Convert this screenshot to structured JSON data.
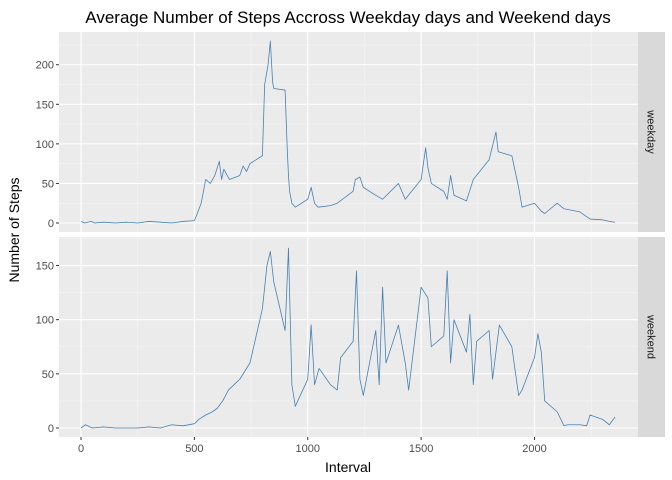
{
  "chart_data": {
    "type": "line",
    "title": "Average Number of Steps Accross Weekday days and Weekend days",
    "xlabel": "Interval",
    "ylabel": "Number of Steps",
    "line_color": "#4682b4",
    "x_ticks": [
      "0",
      "500",
      "1000",
      "1500",
      "2000"
    ],
    "xlim": [
      0,
      2355
    ],
    "facets": [
      {
        "label": "weekday",
        "ylim": [
          0,
          230
        ],
        "y_ticks": [
          "0",
          "50",
          "100",
          "150",
          "200"
        ],
        "x": [
          0,
          15,
          30,
          45,
          60,
          100,
          150,
          200,
          250,
          300,
          350,
          400,
          450,
          500,
          510,
          530,
          550,
          570,
          590,
          610,
          620,
          630,
          645,
          655,
          700,
          715,
          730,
          745,
          800,
          810,
          825,
          835,
          845,
          850,
          900,
          910,
          915,
          920,
          930,
          945,
          1000,
          1015,
          1030,
          1045,
          1100,
          1130,
          1200,
          1210,
          1230,
          1245,
          1300,
          1330,
          1400,
          1430,
          1500,
          1520,
          1530,
          1545,
          1600,
          1615,
          1630,
          1645,
          1700,
          1730,
          1800,
          1830,
          1840,
          1900,
          1930,
          1945,
          2000,
          2030,
          2045,
          2100,
          2130,
          2200,
          2230,
          2245,
          2300,
          2330,
          2355
        ],
        "y": [
          2,
          0,
          1,
          2,
          0,
          1,
          0,
          1,
          0,
          2,
          1,
          0,
          2,
          3,
          10,
          25,
          55,
          50,
          60,
          78,
          55,
          68,
          60,
          55,
          60,
          72,
          65,
          75,
          85,
          175,
          200,
          230,
          178,
          170,
          168,
          90,
          60,
          40,
          25,
          20,
          30,
          45,
          25,
          20,
          22,
          25,
          40,
          55,
          58,
          45,
          35,
          30,
          50,
          30,
          55,
          95,
          70,
          50,
          40,
          30,
          60,
          35,
          28,
          55,
          80,
          115,
          90,
          85,
          45,
          20,
          25,
          15,
          12,
          25,
          18,
          14,
          8,
          5,
          4,
          2,
          1
        ]
      },
      {
        "label": "weekend",
        "ylim": [
          0,
          168
        ],
        "y_ticks": [
          "0",
          "50",
          "100",
          "150"
        ],
        "x": [
          0,
          20,
          50,
          100,
          150,
          200,
          250,
          300,
          350,
          400,
          450,
          500,
          520,
          550,
          580,
          600,
          625,
          650,
          700,
          745,
          800,
          820,
          835,
          850,
          900,
          915,
          930,
          945,
          1000,
          1015,
          1030,
          1050,
          1100,
          1130,
          1145,
          1200,
          1215,
          1230,
          1245,
          1300,
          1315,
          1330,
          1345,
          1400,
          1430,
          1445,
          1500,
          1530,
          1545,
          1600,
          1615,
          1630,
          1645,
          1700,
          1715,
          1730,
          1745,
          1800,
          1815,
          1830,
          1845,
          1900,
          1930,
          1945,
          2000,
          2015,
          2030,
          2045,
          2100,
          2130,
          2145,
          2200,
          2230,
          2245,
          2300,
          2330,
          2355
        ],
        "y": [
          0,
          3,
          0,
          1,
          0,
          0,
          0,
          1,
          0,
          3,
          2,
          4,
          8,
          12,
          15,
          18,
          25,
          35,
          45,
          60,
          110,
          150,
          163,
          135,
          90,
          166,
          40,
          20,
          45,
          95,
          40,
          55,
          40,
          35,
          65,
          80,
          145,
          45,
          30,
          90,
          40,
          130,
          60,
          95,
          60,
          35,
          130,
          120,
          75,
          85,
          145,
          60,
          100,
          70,
          105,
          40,
          80,
          90,
          45,
          70,
          95,
          75,
          30,
          35,
          65,
          87,
          70,
          25,
          15,
          2,
          3,
          3,
          2,
          12,
          8,
          3,
          10
        ]
      }
    ]
  }
}
